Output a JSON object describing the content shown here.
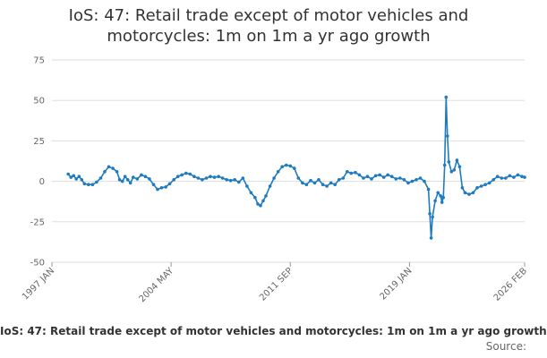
{
  "chart_data": {
    "type": "line",
    "title_lines": [
      "IoS: 47: Retail trade except of motor vehicles and",
      "motorcycles: 1m on 1m a yr ago growth"
    ],
    "footer_title": "IoS: 47: Retail trade except of motor vehicles and motorcycles: 1m on 1m a yr ago growth",
    "source_label": "Source:",
    "xlabel": "",
    "ylabel": "",
    "x_ticks": [
      "1997 JAN",
      "2004 MAY",
      "2011 SEP",
      "2019 JAN",
      "2026 FEB"
    ],
    "y_ticks": [
      "75",
      "50",
      "25",
      "0",
      "-25",
      "-50"
    ],
    "ylim": [
      -50,
      75
    ],
    "grid": "horizontal",
    "legend": "none",
    "series_color": "#1f7bbf",
    "grid_color": "#dddddd",
    "series": [
      {
        "points": [
          [
            "1998-01",
            4.5
          ],
          [
            "1998-03",
            2.5
          ],
          [
            "1998-05",
            3.5
          ],
          [
            "1998-07",
            1.5
          ],
          [
            "1998-09",
            3.0
          ],
          [
            "1998-11",
            1.0
          ],
          [
            "1999-01",
            -1.5
          ],
          [
            "1999-04",
            -2.0
          ],
          [
            "1999-07",
            -2.0
          ],
          [
            "1999-10",
            -0.5
          ],
          [
            "2000-01",
            2.0
          ],
          [
            "2000-04",
            6.0
          ],
          [
            "2000-07",
            9.0
          ],
          [
            "2000-10",
            8.0
          ],
          [
            "2001-01",
            6.0
          ],
          [
            "2001-03",
            1.0
          ],
          [
            "2001-05",
            0.0
          ],
          [
            "2001-07",
            3.0
          ],
          [
            "2001-09",
            1.0
          ],
          [
            "2001-11",
            -1.0
          ],
          [
            "2002-01",
            2.5
          ],
          [
            "2002-04",
            1.5
          ],
          [
            "2002-07",
            4.0
          ],
          [
            "2002-10",
            3.0
          ],
          [
            "2003-01",
            1.5
          ],
          [
            "2003-04",
            -2.0
          ],
          [
            "2003-07",
            -5.0
          ],
          [
            "2003-10",
            -4.0
          ],
          [
            "2004-01",
            -3.5
          ],
          [
            "2004-04",
            -1.5
          ],
          [
            "2004-07",
            1.0
          ],
          [
            "2004-10",
            3.0
          ],
          [
            "2005-01",
            4.0
          ],
          [
            "2005-04",
            5.0
          ],
          [
            "2005-07",
            4.5
          ],
          [
            "2005-10",
            3.0
          ],
          [
            "2006-01",
            2.0
          ],
          [
            "2006-04",
            1.0
          ],
          [
            "2006-07",
            2.0
          ],
          [
            "2006-10",
            3.0
          ],
          [
            "2007-01",
            2.5
          ],
          [
            "2007-04",
            3.0
          ],
          [
            "2007-07",
            2.0
          ],
          [
            "2007-10",
            1.0
          ],
          [
            "2008-01",
            0.5
          ],
          [
            "2008-04",
            1.0
          ],
          [
            "2008-07",
            -0.5
          ],
          [
            "2008-10",
            2.0
          ],
          [
            "2009-01",
            -3.0
          ],
          [
            "2009-04",
            -7.0
          ],
          [
            "2009-07",
            -10.0
          ],
          [
            "2009-09",
            -14.0
          ],
          [
            "2009-11",
            -15.0
          ],
          [
            "2010-01",
            -12.0
          ],
          [
            "2010-03",
            -9.0
          ],
          [
            "2010-06",
            -3.0
          ],
          [
            "2010-09",
            2.0
          ],
          [
            "2010-12",
            6.0
          ],
          [
            "2011-03",
            9.0
          ],
          [
            "2011-06",
            10.0
          ],
          [
            "2011-09",
            9.5
          ],
          [
            "2011-12",
            8.0
          ],
          [
            "2012-03",
            2.0
          ],
          [
            "2012-06",
            -1.0
          ],
          [
            "2012-09",
            -2.0
          ],
          [
            "2012-12",
            0.5
          ],
          [
            "2013-03",
            -1.0
          ],
          [
            "2013-06",
            1.0
          ],
          [
            "2013-09",
            -2.0
          ],
          [
            "2013-12",
            -3.0
          ],
          [
            "2014-03",
            -1.0
          ],
          [
            "2014-06",
            -2.0
          ],
          [
            "2014-09",
            1.0
          ],
          [
            "2014-12",
            2.0
          ],
          [
            "2015-03",
            6.0
          ],
          [
            "2015-06",
            5.0
          ],
          [
            "2015-09",
            5.5
          ],
          [
            "2015-12",
            4.0
          ],
          [
            "2016-03",
            2.0
          ],
          [
            "2016-06",
            3.0
          ],
          [
            "2016-09",
            1.5
          ],
          [
            "2016-12",
            3.5
          ],
          [
            "2017-03",
            4.0
          ],
          [
            "2017-06",
            2.5
          ],
          [
            "2017-09",
            4.0
          ],
          [
            "2017-12",
            3.0
          ],
          [
            "2018-03",
            1.5
          ],
          [
            "2018-06",
            2.0
          ],
          [
            "2018-09",
            1.0
          ],
          [
            "2018-12",
            -1.0
          ],
          [
            "2019-03",
            0.0
          ],
          [
            "2019-06",
            1.0
          ],
          [
            "2019-09",
            2.0
          ],
          [
            "2019-12",
            0.0
          ],
          [
            "2020-03",
            -5.0
          ],
          [
            "2020-04",
            -20.0
          ],
          [
            "2020-05",
            -35.0
          ],
          [
            "2020-06",
            -22.0
          ],
          [
            "2020-08",
            -12.0
          ],
          [
            "2020-10",
            -7.0
          ],
          [
            "2020-12",
            -9.0
          ],
          [
            "2021-01",
            -13.0
          ],
          [
            "2021-02",
            -10.0
          ],
          [
            "2021-03",
            10.0
          ],
          [
            "2021-04",
            52.0
          ],
          [
            "2021-05",
            28.0
          ],
          [
            "2021-06",
            12.0
          ],
          [
            "2021-08",
            6.0
          ],
          [
            "2021-10",
            7.0
          ],
          [
            "2021-12",
            13.0
          ],
          [
            "2022-02",
            9.0
          ],
          [
            "2022-04",
            -4.0
          ],
          [
            "2022-06",
            -7.0
          ],
          [
            "2022-09",
            -8.0
          ],
          [
            "2022-12",
            -7.0
          ],
          [
            "2023-03",
            -4.0
          ],
          [
            "2023-06",
            -3.0
          ],
          [
            "2023-09",
            -2.0
          ],
          [
            "2023-12",
            -1.0
          ],
          [
            "2024-03",
            1.0
          ],
          [
            "2024-06",
            3.0
          ],
          [
            "2024-09",
            2.0
          ],
          [
            "2024-12",
            2.0
          ],
          [
            "2025-03",
            3.5
          ],
          [
            "2025-06",
            2.5
          ],
          [
            "2025-09",
            4.0
          ],
          [
            "2025-12",
            3.0
          ],
          [
            "2026-02",
            2.5
          ]
        ]
      }
    ]
  }
}
